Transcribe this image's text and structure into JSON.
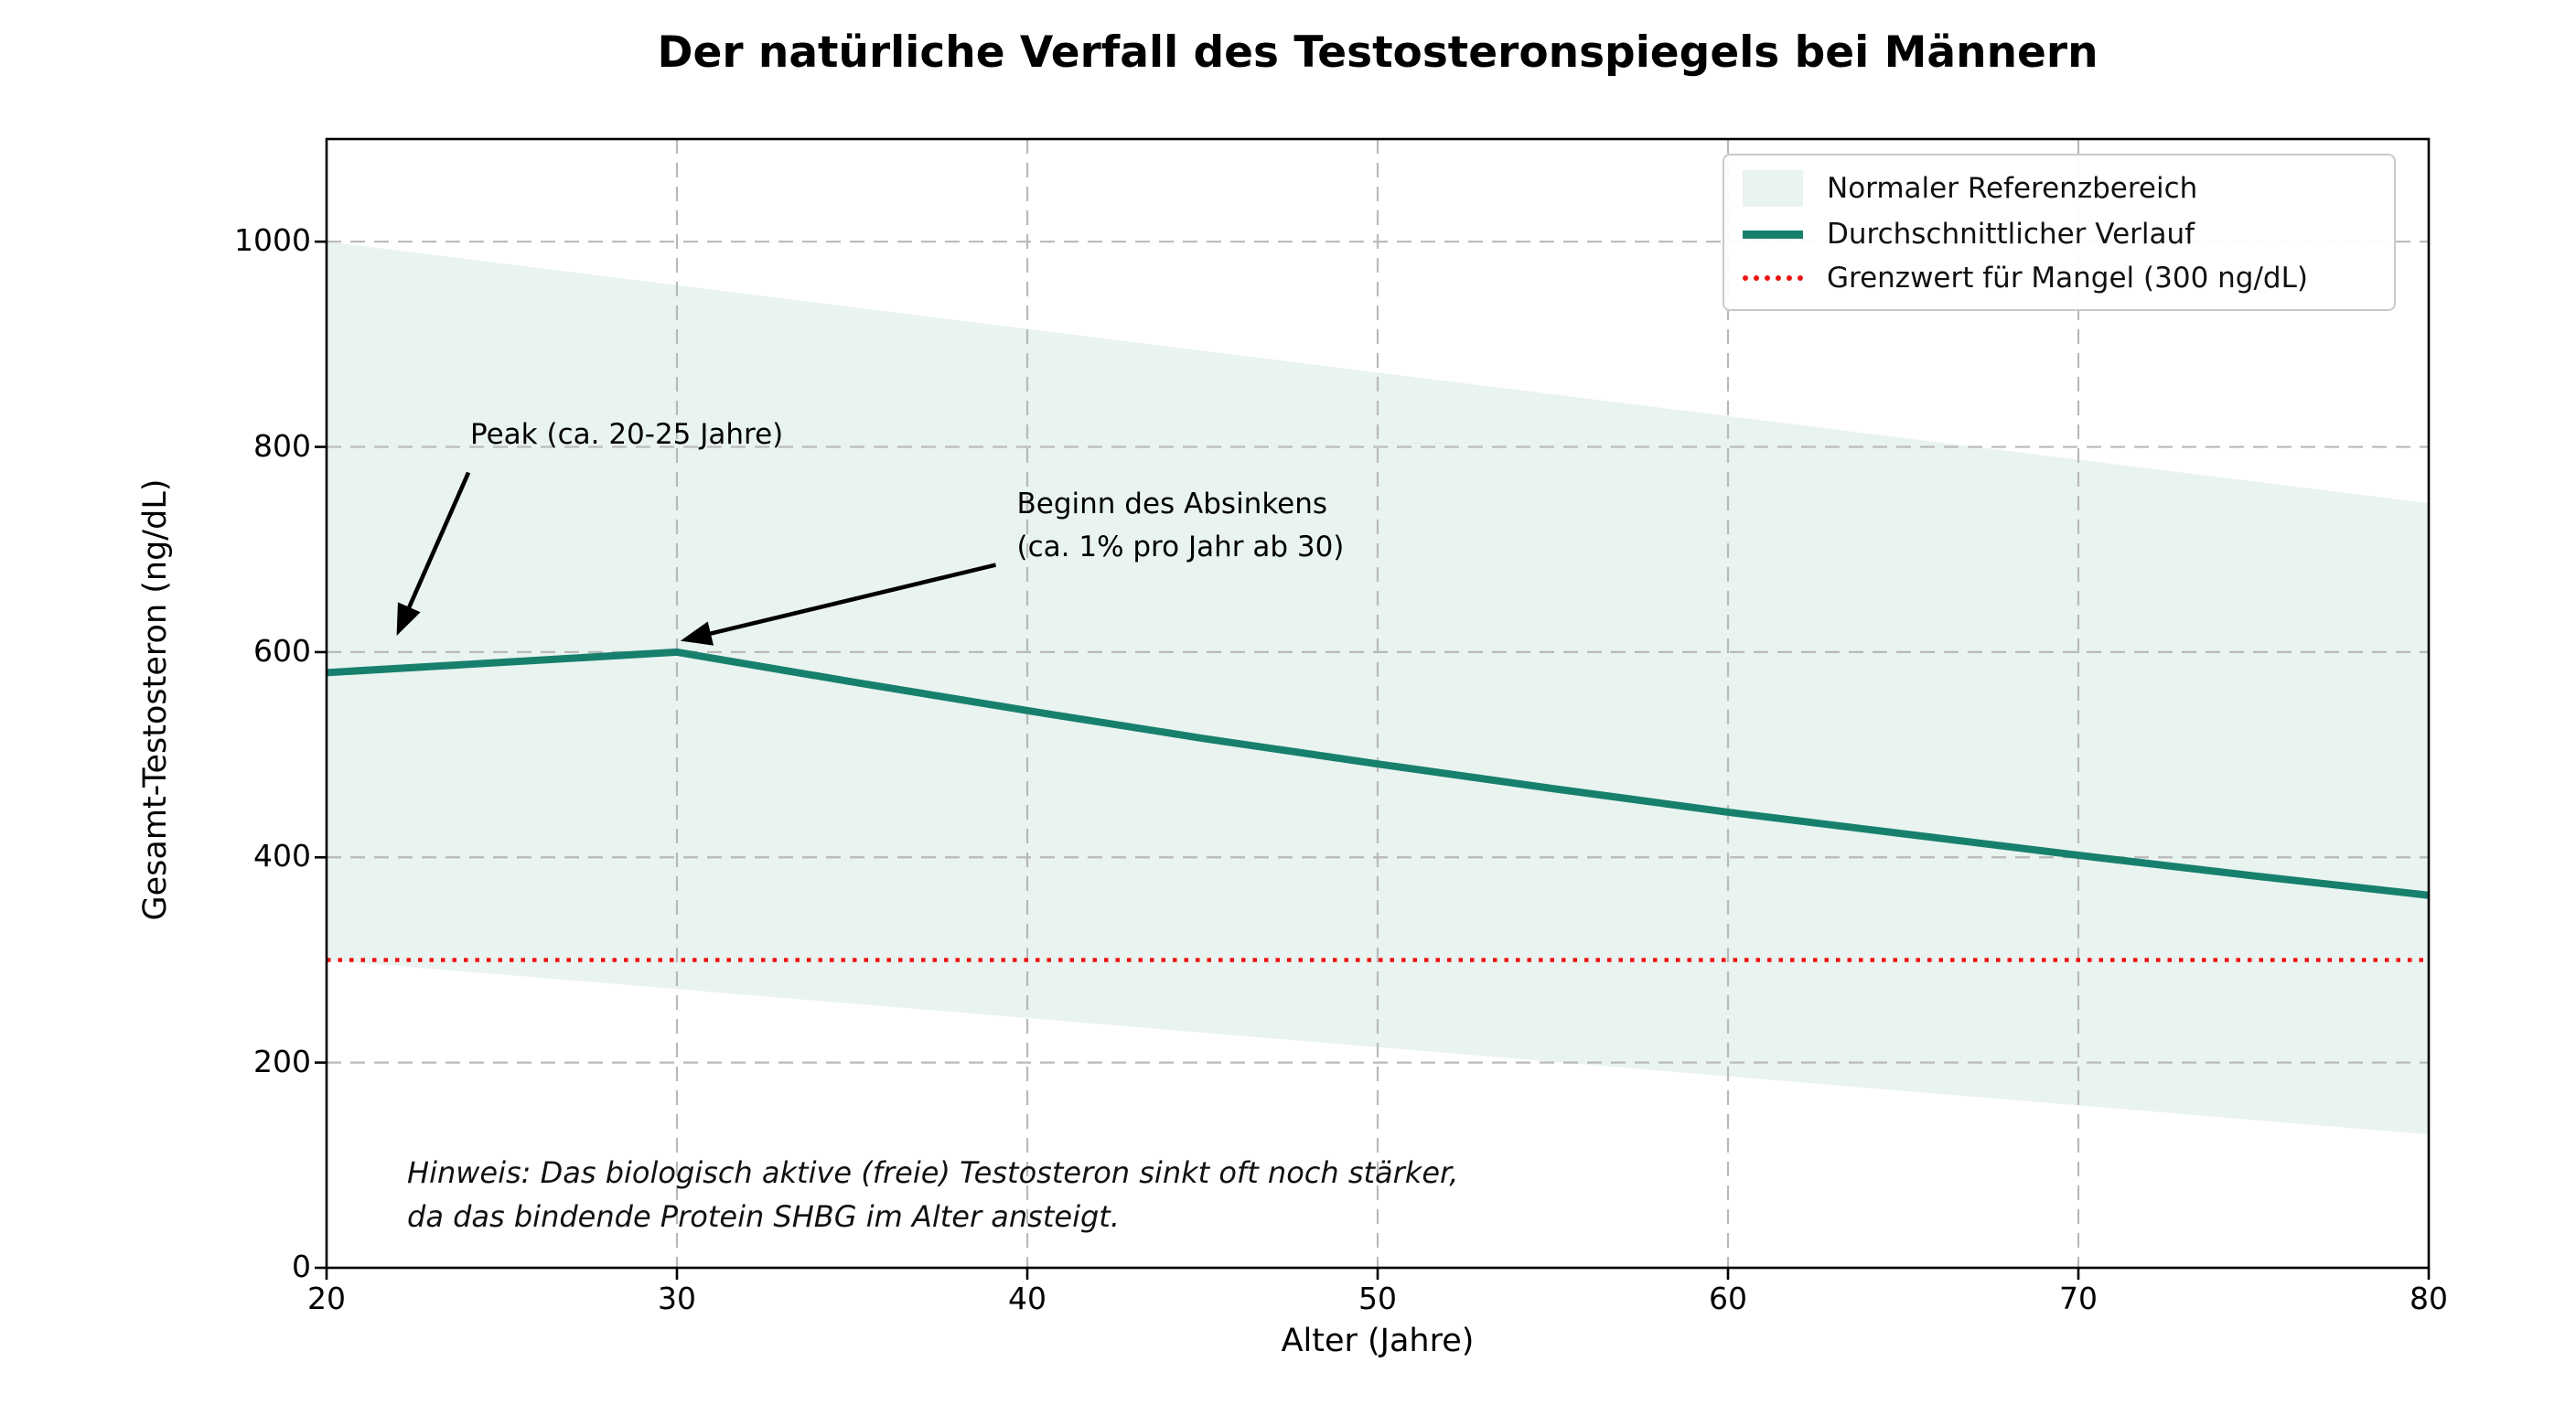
{
  "chart_data": {
    "type": "line",
    "title": "Der natürliche Verfall des Testosteronspiegels bei Männern",
    "xlabel": "Alter (Jahre)",
    "ylabel": "Gesamt-Testosteron (ng/dL)",
    "xlim": [
      20,
      80
    ],
    "ylim": [
      0,
      1100
    ],
    "xticks": [
      20,
      30,
      40,
      50,
      60,
      70,
      80
    ],
    "yticks": [
      0,
      200,
      400,
      600,
      800,
      1000
    ],
    "grid": true,
    "colors": {
      "band": "#e9f3f0",
      "line": "#17806d",
      "threshold": "#ee1111",
      "grid": "#b9b9b9",
      "spine": "#000000"
    },
    "series": [
      {
        "name": "Normaler Referenzbereich",
        "type": "band",
        "x": [
          20,
          80
        ],
        "upper": [
          1000,
          745
        ],
        "lower": [
          300,
          130
        ]
      },
      {
        "name": "Durchschnittlicher Verlauf",
        "type": "line",
        "x": [
          20,
          25,
          30,
          35,
          40,
          45,
          50,
          55,
          60,
          65,
          70,
          75,
          80
        ],
        "y": [
          580,
          590,
          600,
          571,
          543,
          516,
          491,
          467,
          444,
          423,
          402,
          382,
          363
        ]
      },
      {
        "name": "Grenzwert für Mangel (300 ng/dL)",
        "type": "hline",
        "y": 300,
        "style": "dotted"
      }
    ],
    "legend": {
      "position": "upper right",
      "entries": [
        {
          "label": "Normaler Referenzbereich",
          "swatch": "patch"
        },
        {
          "label": "Durchschnittlicher Verlauf",
          "swatch": "line"
        },
        {
          "label": "Grenzwert für Mangel (300 ng/dL)",
          "swatch": "dotted"
        }
      ]
    },
    "annotations": [
      {
        "lines": [
          "Peak (ca. 20-25 Jahre)"
        ],
        "text_xy": [
          24.1,
          833
        ],
        "arrow_from": [
          24.05,
          775
        ],
        "arrow_to": [
          22.0,
          616
        ]
      },
      {
        "lines": [
          "Beginn des Absinkens",
          "(ca. 1% pro Jahr ab 30)"
        ],
        "text_xy": [
          39.7,
          765
        ],
        "arrow_from": [
          39.1,
          685
        ],
        "arrow_to": [
          30.1,
          611
        ]
      }
    ],
    "note_lines": [
      "Hinweis: Das biologisch aktive (freie) Testosteron sinkt oft noch stärker,",
      "da das bindende Protein SHBG im Alter ansteigt."
    ]
  }
}
